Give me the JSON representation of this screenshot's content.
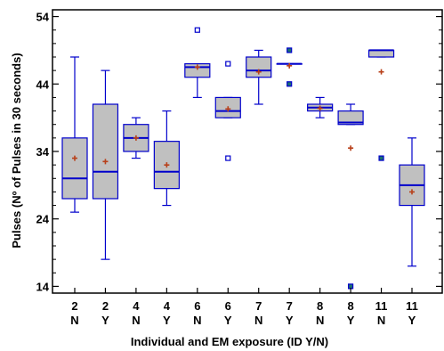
{
  "chart_data": {
    "type": "box",
    "xlabel": "Individual and EM exposure (ID Y/N)",
    "ylabel": "Pulses (Nº of Pulses in 30 seconds)",
    "ylim": [
      13,
      55
    ],
    "yticks": [
      14,
      24,
      34,
      44,
      54
    ],
    "grid": false,
    "colors": {
      "box_fill": "#c0c0c0",
      "box_stroke": "#0000cc",
      "mean_marker": "#b8401a",
      "outlier_far": "#1a7070"
    },
    "categories": [
      {
        "id": "2",
        "exposure": "N"
      },
      {
        "id": "2",
        "exposure": "Y"
      },
      {
        "id": "4",
        "exposure": "N"
      },
      {
        "id": "4",
        "exposure": "Y"
      },
      {
        "id": "6",
        "exposure": "N"
      },
      {
        "id": "6",
        "exposure": "Y"
      },
      {
        "id": "7",
        "exposure": "N"
      },
      {
        "id": "7",
        "exposure": "Y"
      },
      {
        "id": "8",
        "exposure": "N"
      },
      {
        "id": "8",
        "exposure": "Y"
      },
      {
        "id": "11",
        "exposure": "N"
      },
      {
        "id": "11",
        "exposure": "Y"
      }
    ],
    "boxes": [
      {
        "whisker_low": 25,
        "q1": 27,
        "median": 30,
        "q3": 36,
        "whisker_high": 48,
        "mean": 33,
        "outliers": [],
        "far_outliers": []
      },
      {
        "whisker_low": 18,
        "q1": 27,
        "median": 31,
        "q3": 41,
        "whisker_high": 46,
        "mean": 32.5,
        "outliers": [],
        "far_outliers": []
      },
      {
        "whisker_low": 33,
        "q1": 34,
        "median": 36,
        "q3": 38,
        "whisker_high": 39,
        "mean": 36,
        "outliers": [],
        "far_outliers": []
      },
      {
        "whisker_low": 26,
        "q1": 28.5,
        "median": 31,
        "q3": 35.5,
        "whisker_high": 40,
        "mean": 32,
        "outliers": [],
        "far_outliers": []
      },
      {
        "whisker_low": 42,
        "q1": 45,
        "median": 46.5,
        "q3": 47,
        "whisker_high": 47,
        "mean": 46.5,
        "outliers": [
          52
        ],
        "far_outliers": []
      },
      {
        "whisker_low": 39,
        "q1": 39,
        "median": 40,
        "q3": 42,
        "whisker_high": 42,
        "mean": 40.3,
        "outliers": [
          47,
          33
        ],
        "far_outliers": []
      },
      {
        "whisker_low": 41,
        "q1": 45,
        "median": 46,
        "q3": 48,
        "whisker_high": 49,
        "mean": 45.8,
        "outliers": [],
        "far_outliers": []
      },
      {
        "whisker_low": 47,
        "q1": 47,
        "median": 47,
        "q3": 47,
        "whisker_high": 47,
        "mean": 46.7,
        "outliers": [],
        "far_outliers": [
          49,
          44
        ]
      },
      {
        "whisker_low": 39,
        "q1": 40,
        "median": 40.5,
        "q3": 41,
        "whisker_high": 42,
        "mean": 40.4,
        "outliers": [],
        "far_outliers": []
      },
      {
        "whisker_low": 38,
        "q1": 38,
        "median": 38.3,
        "q3": 40,
        "whisker_high": 41,
        "mean": 34.5,
        "outliers": [],
        "far_outliers": [
          14
        ]
      },
      {
        "whisker_low": 48,
        "q1": 48,
        "median": 49,
        "q3": 49,
        "whisker_high": 49,
        "mean": 45.8,
        "outliers": [],
        "far_outliers": [
          33
        ]
      },
      {
        "whisker_low": 17,
        "q1": 26,
        "median": 29,
        "q3": 32,
        "whisker_high": 36,
        "mean": 28,
        "outliers": [],
        "far_outliers": []
      }
    ]
  }
}
